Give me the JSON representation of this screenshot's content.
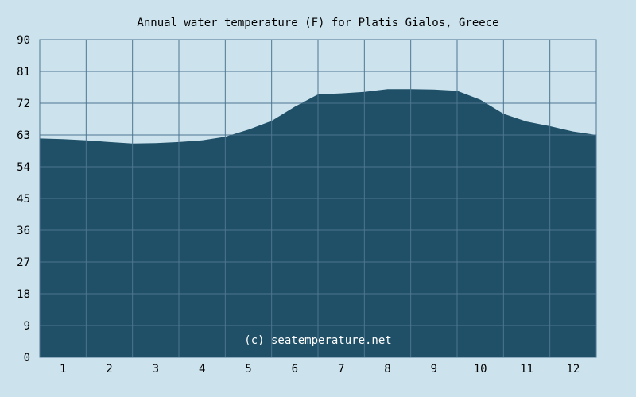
{
  "chart_data": {
    "type": "area",
    "title": "Annual water temperature (F) for Platis Gialos, Greece",
    "xlabel": "",
    "ylabel": "",
    "x_ticks": [
      "1",
      "2",
      "3",
      "4",
      "5",
      "6",
      "7",
      "8",
      "9",
      "10",
      "11",
      "12"
    ],
    "y_ticks": [
      "0",
      "9",
      "18",
      "27",
      "36",
      "45",
      "54",
      "63",
      "72",
      "81",
      "90"
    ],
    "ylim": [
      0,
      90
    ],
    "xlim": [
      0.5,
      12.5
    ],
    "grid": true,
    "watermark": "(c) seatemperature.net",
    "colors": {
      "background": "#cce3ee",
      "plot_background": "#cce3ee",
      "area_fill": "#1f5068",
      "grid": "#4f7590",
      "axis": "#4f7590",
      "title": "#000000",
      "watermark": "#ffffff"
    },
    "series": [
      {
        "x": [
          0.5,
          1.0,
          1.5,
          2.0,
          2.5,
          3.0,
          3.5,
          4.0,
          4.5,
          5.0,
          5.5,
          6.0,
          6.5,
          7.0,
          7.5,
          8.0,
          8.5,
          9.0,
          9.5,
          10.0,
          10.5,
          11.0,
          11.5,
          12.0,
          12.5
        ],
        "values": [
          62.0,
          61.8,
          61.5,
          61.0,
          60.6,
          60.7,
          61.0,
          61.5,
          62.5,
          64.5,
          67.0,
          71.0,
          74.5,
          74.8,
          75.2,
          76.0,
          76.0,
          75.9,
          75.5,
          73.0,
          69.0,
          66.8,
          65.5,
          64.0,
          63.0
        ]
      }
    ]
  }
}
